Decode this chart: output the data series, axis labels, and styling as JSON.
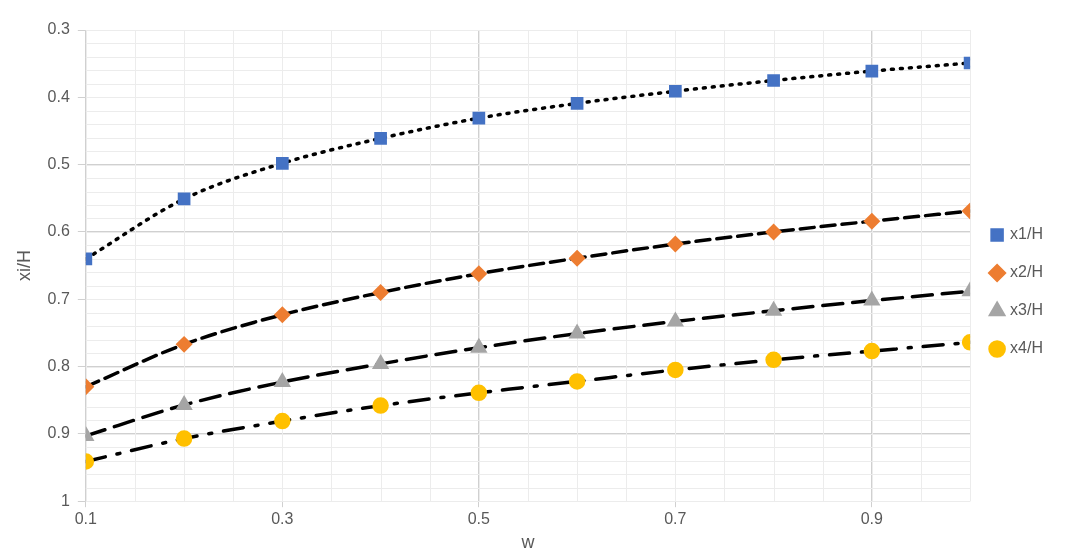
{
  "chart_data": {
    "type": "line",
    "xlabel": "w",
    "ylabel": "xi/H",
    "x": [
      0.1,
      0.2,
      0.3,
      0.4,
      0.5,
      0.6,
      0.7,
      0.8,
      0.9,
      1.0
    ],
    "series": [
      {
        "name": "x1/H",
        "color": "#4472c4",
        "marker": "square",
        "line_style": "dotted",
        "values": [
          0.64,
          0.551,
          0.498,
          0.461,
          0.431,
          0.409,
          0.391,
          0.375,
          0.361,
          0.349
        ]
      },
      {
        "name": "x2/H",
        "color": "#ed7d31",
        "marker": "diamond",
        "line_style": "dashed",
        "values": [
          0.83,
          0.767,
          0.723,
          0.69,
          0.662,
          0.639,
          0.618,
          0.6,
          0.584,
          0.569
        ]
      },
      {
        "name": "x3/H",
        "color": "#a5a5a5",
        "marker": "triangle",
        "line_style": "dashed",
        "values": [
          0.903,
          0.857,
          0.823,
          0.796,
          0.772,
          0.751,
          0.733,
          0.717,
          0.702,
          0.688
        ]
      },
      {
        "name": "x4/H",
        "color": "#ffc000",
        "marker": "circle",
        "line_style": "dashed",
        "values": [
          0.941,
          0.907,
          0.881,
          0.858,
          0.839,
          0.822,
          0.805,
          0.79,
          0.777,
          0.764
        ]
      }
    ],
    "xlim": [
      0.1,
      1.0
    ],
    "xticks": [
      0.1,
      0.3,
      0.5,
      0.7,
      0.9
    ],
    "ylim": [
      1,
      0.3
    ],
    "yticks": [
      0.3,
      0.4,
      0.5,
      0.6,
      0.7,
      0.8,
      0.9,
      1
    ],
    "grid": true,
    "legend": "right"
  }
}
